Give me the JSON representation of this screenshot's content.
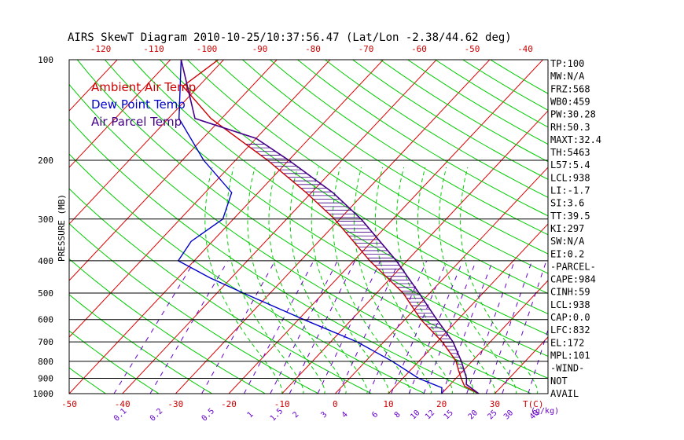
{
  "chart_data": {
    "type": "line",
    "title": "AIRS SkewT Diagram 2010-10-25/10:37:56.47 (Lat/Lon -2.38/44.62 deg)",
    "ylabel": "PRESSURE (MB)",
    "xlabel": "T(C)",
    "mixing_ratio_unit": "(g/kg)",
    "ylim": [
      1000,
      100
    ],
    "xlim": [
      -50,
      40
    ],
    "pressure_ticks": [
      100,
      200,
      300,
      400,
      500,
      600,
      700,
      800,
      900,
      1000
    ],
    "bottom_temp_ticks": [
      -50,
      -40,
      -30,
      -20,
      -10,
      0,
      10,
      20,
      30
    ],
    "top_temp_ticks": [
      -120,
      -110,
      -100,
      -90,
      -80,
      -70,
      -60,
      -50,
      -40
    ],
    "mixing_ratio_ticks": [
      "0.1",
      "0.2",
      "0.5",
      "1",
      "1.5",
      "2",
      "3",
      "4",
      "6",
      "8",
      "10",
      "12",
      "15",
      "20",
      "25",
      "30",
      "40"
    ],
    "legend": [
      "Ambient Air Temp",
      "Dew Point Temp",
      "Air Parcel Temp"
    ],
    "series": [
      {
        "name": "Ambient Air Temp",
        "color": "#cc0000",
        "points": [
          [
            1000,
            27
          ],
          [
            950,
            23
          ],
          [
            900,
            21
          ],
          [
            850,
            19
          ],
          [
            800,
            17
          ],
          [
            700,
            11
          ],
          [
            600,
            3
          ],
          [
            500,
            -5
          ],
          [
            400,
            -17
          ],
          [
            300,
            -31
          ],
          [
            250,
            -41
          ],
          [
            200,
            -54
          ],
          [
            150,
            -72
          ],
          [
            120,
            -83
          ],
          [
            100,
            -81
          ]
        ]
      },
      {
        "name": "Dew Point Temp",
        "color": "#0000cc",
        "points": [
          [
            1000,
            20
          ],
          [
            960,
            19
          ],
          [
            900,
            13
          ],
          [
            800,
            5
          ],
          [
            700,
            -5
          ],
          [
            600,
            -19
          ],
          [
            500,
            -35
          ],
          [
            450,
            -44
          ],
          [
            400,
            -53
          ],
          [
            350,
            -54
          ],
          [
            300,
            -52
          ],
          [
            250,
            -55
          ],
          [
            200,
            -66
          ],
          [
            150,
            -78
          ],
          [
            100,
            -88
          ]
        ]
      },
      {
        "name": "Air Parcel Temp",
        "color": "#440088",
        "points": [
          [
            1000,
            27
          ],
          [
            938,
            23
          ],
          [
            900,
            22
          ],
          [
            800,
            18
          ],
          [
            700,
            13
          ],
          [
            600,
            6
          ],
          [
            500,
            -2
          ],
          [
            400,
            -12
          ],
          [
            300,
            -26
          ],
          [
            250,
            -36
          ],
          [
            200,
            -50
          ],
          [
            172,
            -60
          ],
          [
            150,
            -75
          ],
          [
            100,
            -88
          ]
        ]
      }
    ],
    "indices": [
      "TP:100",
      "MW:N/A",
      "FRZ:568",
      "WB0:459",
      "PW:30.28",
      "RH:50.3",
      "MAXT:32.4",
      "TH:5463",
      "L57:5.4",
      "LCL:938",
      "LI:-1.7",
      "SI:3.6",
      "TT:39.5",
      "KI:297",
      "SW:N/A",
      "EI:0.2",
      "-PARCEL-",
      "CAPE:984",
      "CINH:59",
      "LCL:938",
      "CAP:0.0",
      "LFC:832",
      "EL:172",
      "MPL:101",
      "-WIND-",
      "NOT",
      "AVAIL"
    ],
    "colors": {
      "isotherm": "#dd0000",
      "dry_adiabat": "#00cc00",
      "moist_adiabat": "#00cc00",
      "mixing_ratio": "#6600cc",
      "isobar": "#000000",
      "title": "#000000"
    }
  }
}
